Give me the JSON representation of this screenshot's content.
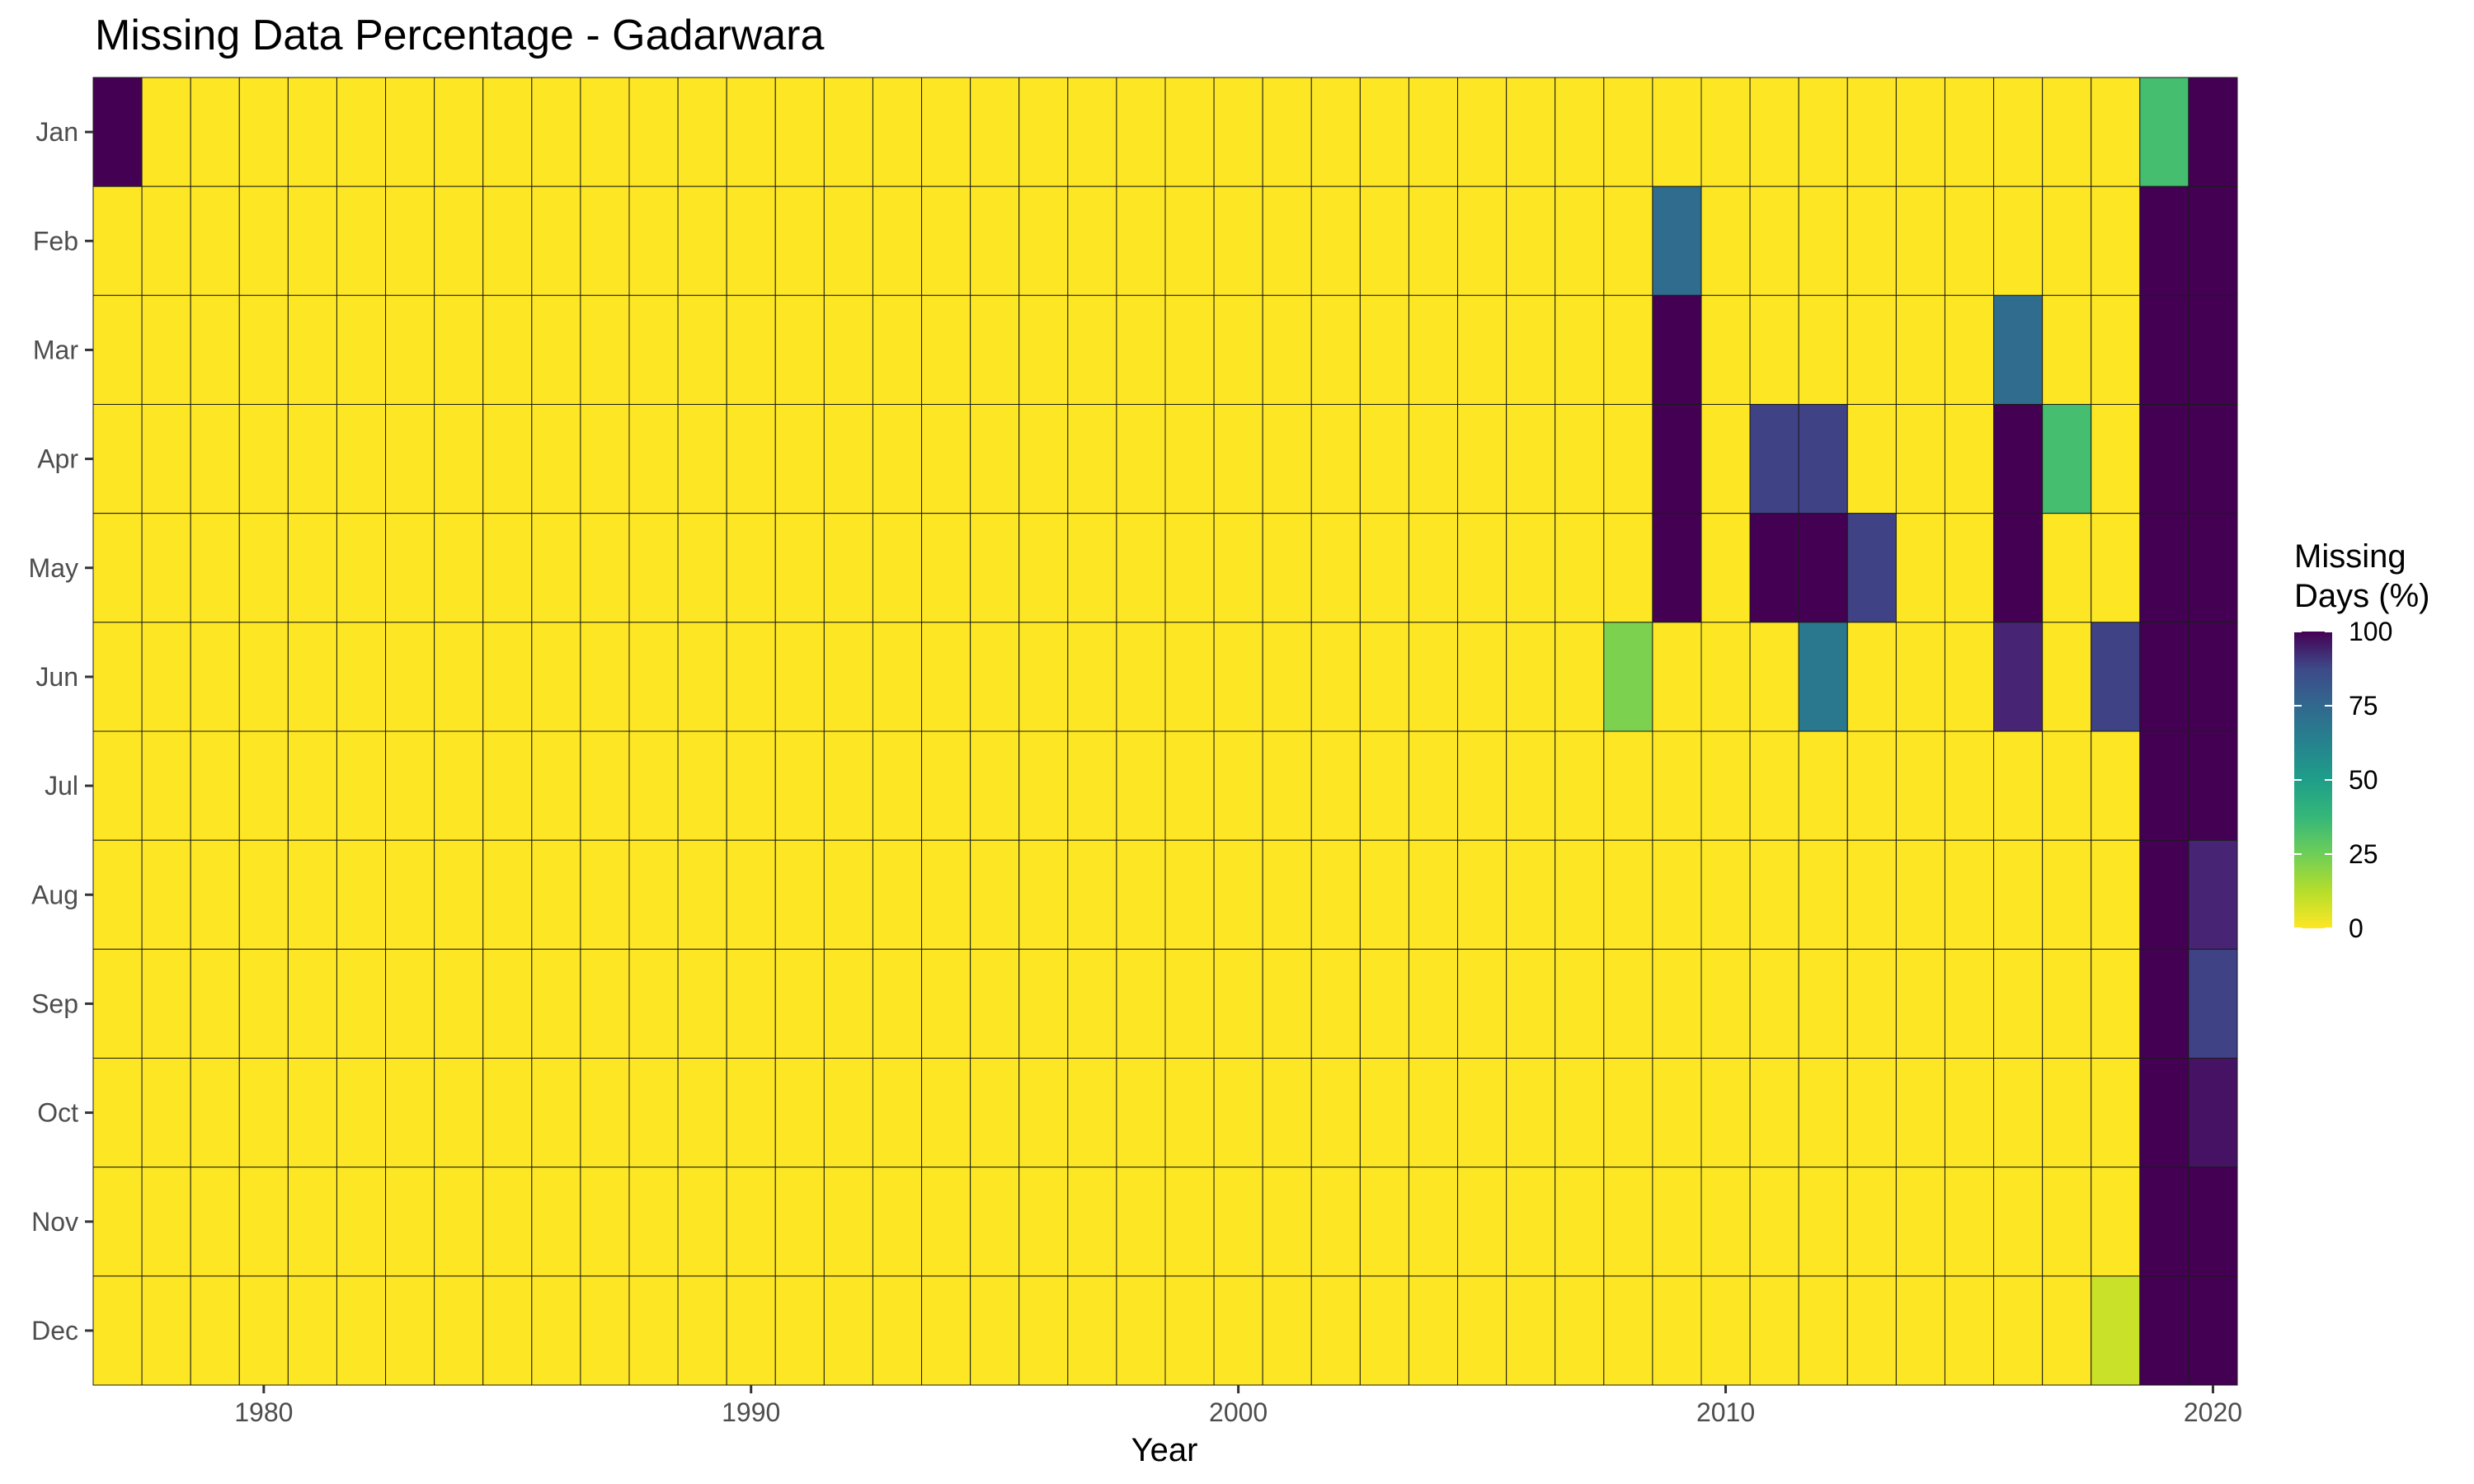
{
  "chart_data": {
    "type": "heatmap",
    "title": "Missing Data Percentage - Gadarwara",
    "xlabel": "Year",
    "ylabel": "",
    "x_ticks": [
      1980,
      1990,
      2000,
      2010,
      2020
    ],
    "xlim": [
      1976.5,
      2020.5
    ],
    "years": [
      1977,
      2020
    ],
    "months": [
      "Jan",
      "Feb",
      "Mar",
      "Apr",
      "May",
      "Jun",
      "Jul",
      "Aug",
      "Sep",
      "Oct",
      "Nov",
      "Dec"
    ],
    "default_value": 0,
    "colorscale": "viridis-reversed",
    "colorbar": {
      "title_lines": [
        "Missing",
        "Days (%)"
      ],
      "ticks": [
        0,
        25,
        50,
        75,
        100
      ],
      "range": [
        0,
        100
      ]
    },
    "cells": [
      {
        "year": 1977,
        "month": "Jan",
        "value": 100
      },
      {
        "year": 2008,
        "month": "Jun",
        "value": 20
      },
      {
        "year": 2009,
        "month": "Feb",
        "value": 65
      },
      {
        "year": 2009,
        "month": "Mar",
        "value": 100
      },
      {
        "year": 2009,
        "month": "Apr",
        "value": 100
      },
      {
        "year": 2009,
        "month": "May",
        "value": 100
      },
      {
        "year": 2011,
        "month": "Apr",
        "value": 80
      },
      {
        "year": 2011,
        "month": "May",
        "value": 100
      },
      {
        "year": 2012,
        "month": "Apr",
        "value": 80
      },
      {
        "year": 2012,
        "month": "May",
        "value": 100
      },
      {
        "year": 2012,
        "month": "Jun",
        "value": 60
      },
      {
        "year": 2013,
        "month": "May",
        "value": 80
      },
      {
        "year": 2016,
        "month": "Mar",
        "value": 65
      },
      {
        "year": 2016,
        "month": "Apr",
        "value": 100
      },
      {
        "year": 2016,
        "month": "May",
        "value": 100
      },
      {
        "year": 2016,
        "month": "Jun",
        "value": 90
      },
      {
        "year": 2017,
        "month": "Apr",
        "value": 30
      },
      {
        "year": 2018,
        "month": "Jun",
        "value": 80
      },
      {
        "year": 2018,
        "month": "Dec",
        "value": 8
      },
      {
        "year": 2019,
        "month": "Jan",
        "value": 30
      },
      {
        "year": 2019,
        "month": "Feb",
        "value": 100
      },
      {
        "year": 2019,
        "month": "Mar",
        "value": 100
      },
      {
        "year": 2019,
        "month": "Apr",
        "value": 100
      },
      {
        "year": 2019,
        "month": "May",
        "value": 100
      },
      {
        "year": 2019,
        "month": "Jun",
        "value": 100
      },
      {
        "year": 2019,
        "month": "Jul",
        "value": 100
      },
      {
        "year": 2019,
        "month": "Aug",
        "value": 100
      },
      {
        "year": 2019,
        "month": "Sep",
        "value": 100
      },
      {
        "year": 2019,
        "month": "Oct",
        "value": 100
      },
      {
        "year": 2019,
        "month": "Nov",
        "value": 100
      },
      {
        "year": 2019,
        "month": "Dec",
        "value": 100
      },
      {
        "year": 2020,
        "month": "Jan",
        "value": 100
      },
      {
        "year": 2020,
        "month": "Feb",
        "value": 100
      },
      {
        "year": 2020,
        "month": "Mar",
        "value": 100
      },
      {
        "year": 2020,
        "month": "Apr",
        "value": 100
      },
      {
        "year": 2020,
        "month": "May",
        "value": 100
      },
      {
        "year": 2020,
        "month": "Jun",
        "value": 100
      },
      {
        "year": 2020,
        "month": "Jul",
        "value": 100
      },
      {
        "year": 2020,
        "month": "Aug",
        "value": 90
      },
      {
        "year": 2020,
        "month": "Sep",
        "value": 80
      },
      {
        "year": 2020,
        "month": "Oct",
        "value": 95
      },
      {
        "year": 2020,
        "month": "Nov",
        "value": 100
      },
      {
        "year": 2020,
        "month": "Dec",
        "value": 100
      }
    ]
  }
}
